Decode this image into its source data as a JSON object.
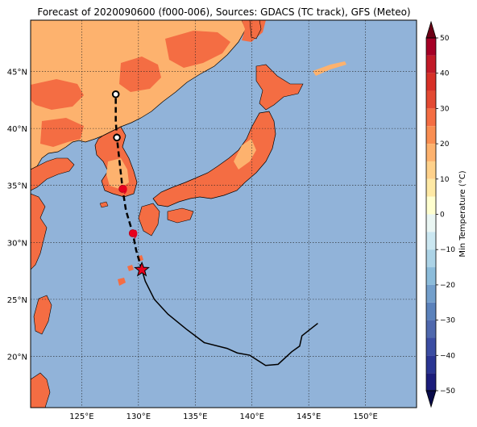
{
  "title": "Forecast of 2020090600 (f000-006), Sources: GDACS (TC track), GFS (Meteo)",
  "map": {
    "lon_range": [
      120.5,
      154.5
    ],
    "lat_range": [
      15.5,
      49.5
    ],
    "lon_ticks": [
      125,
      130,
      135,
      140,
      145,
      150
    ],
    "lat_ticks": [
      20,
      25,
      30,
      35,
      40,
      45
    ],
    "lon_tick_labels": [
      "125°E",
      "130°E",
      "135°E",
      "140°E",
      "145°E",
      "150°E"
    ],
    "lat_tick_labels": [
      "20°N",
      "25°N",
      "30°N",
      "35°N",
      "40°N",
      "45°N"
    ],
    "gridlines": "dotted",
    "ocean_color": "#91b3d9",
    "land_colors": {
      "warm_10_20": "#fdb26e",
      "warm_20_30": "#f46d43"
    }
  },
  "storm_track": {
    "past_track": [
      [
        145.8,
        22.9
      ],
      [
        144.4,
        21.8
      ],
      [
        144.2,
        20.9
      ],
      [
        143.5,
        20.4
      ],
      [
        142.3,
        19.3
      ],
      [
        141.2,
        19.2
      ],
      [
        139.8,
        20.1
      ],
      [
        138.7,
        20.3
      ],
      [
        137.8,
        20.7
      ],
      [
        135.8,
        21.2
      ],
      [
        134.2,
        22.4
      ],
      [
        132.6,
        23.7
      ],
      [
        131.4,
        25.0
      ],
      [
        130.6,
        26.6
      ],
      [
        130.3,
        27.6
      ]
    ],
    "forecast_track": [
      [
        130.3,
        27.6
      ],
      [
        129.8,
        29.3
      ],
      [
        129.5,
        30.8
      ],
      [
        128.9,
        32.8
      ],
      [
        128.6,
        34.7
      ],
      [
        128.4,
        36.5
      ],
      [
        128.1,
        39.2
      ],
      [
        128.0,
        40.7
      ],
      [
        128.0,
        43.0
      ]
    ],
    "current_position": [
      130.3,
      27.6
    ],
    "forecast_points": [
      {
        "lon": 129.5,
        "lat": 30.8,
        "kind": "typhoon",
        "color": "#e8001e"
      },
      {
        "lon": 128.6,
        "lat": 34.7,
        "kind": "typhoon",
        "color": "#e8001e"
      },
      {
        "lon": 128.1,
        "lat": 39.2,
        "kind": "tropical storm",
        "color": "#ffffff"
      },
      {
        "lon": 128.0,
        "lat": 43.0,
        "kind": "extratropical",
        "color": "#ffffff"
      }
    ]
  },
  "colorbar": {
    "label": "Min Temperature (°C)",
    "min": -50,
    "max": 50,
    "ticks": [
      50,
      40,
      30,
      20,
      10,
      0,
      -10,
      -20,
      -30,
      -40,
      -50
    ],
    "tick_labels": [
      "50",
      "40",
      "30",
      "20",
      "10",
      "0",
      "−10",
      "−20",
      "−30",
      "−40",
      "−50"
    ],
    "bins": [
      {
        "from": 45,
        "to": 50,
        "color": "#a50026"
      },
      {
        "from": 40,
        "to": 45,
        "color": "#c11a28"
      },
      {
        "from": 35,
        "to": 40,
        "color": "#d73027"
      },
      {
        "from": 30,
        "to": 35,
        "color": "#e34a33"
      },
      {
        "from": 25,
        "to": 30,
        "color": "#f46d43"
      },
      {
        "from": 20,
        "to": 25,
        "color": "#f98e52"
      },
      {
        "from": 15,
        "to": 20,
        "color": "#fdb26e"
      },
      {
        "from": 10,
        "to": 15,
        "color": "#fed18b"
      },
      {
        "from": 5,
        "to": 10,
        "color": "#fee9a5"
      },
      {
        "from": 0,
        "to": 5,
        "color": "#ffffcf"
      },
      {
        "from": -5,
        "to": 0,
        "color": "#eaf6f3"
      },
      {
        "from": -10,
        "to": -5,
        "color": "#cbe7f1"
      },
      {
        "from": -15,
        "to": -10,
        "color": "#acd3e6"
      },
      {
        "from": -20,
        "to": -15,
        "color": "#8cbcda"
      },
      {
        "from": -25,
        "to": -20,
        "color": "#739fcb"
      },
      {
        "from": -30,
        "to": -25,
        "color": "#5b82bb"
      },
      {
        "from": -35,
        "to": -30,
        "color": "#4f68ad"
      },
      {
        "from": -40,
        "to": -35,
        "color": "#3b4da2"
      },
      {
        "from": -45,
        "to": -40,
        "color": "#2a3592"
      },
      {
        "from": -50,
        "to": -45,
        "color": "#1c1d7b"
      }
    ],
    "extend": "both",
    "under_color": "#090b4a",
    "over_color": "#6c0016"
  }
}
